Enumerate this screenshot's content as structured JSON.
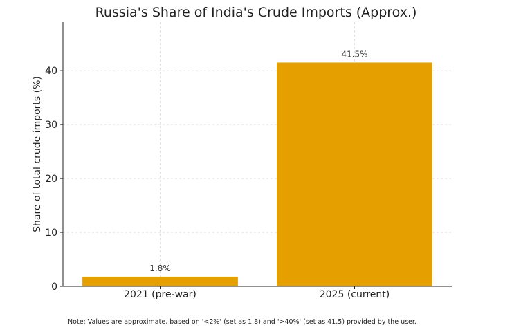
{
  "chart_data": {
    "type": "bar",
    "title": "Russia's Share of India's Crude Imports (Approx.)",
    "xlabel": "",
    "ylabel": "Share of total crude imports (%)",
    "categories": [
      "2021 (pre-war)",
      "2025 (current)"
    ],
    "values": [
      1.8,
      41.5
    ],
    "data_labels": [
      "1.8%",
      "41.5%"
    ],
    "ylim": [
      0,
      49
    ],
    "yticks": [
      0,
      10,
      20,
      30,
      40
    ],
    "ytick_labels": [
      "0",
      "10",
      "20",
      "30",
      "40"
    ],
    "grid": true,
    "bar_color": "#E5A000"
  },
  "note": "Note: Values are approximate, based on '<2%' (set as 1.8) and '>40%' (set as 41.5) provided by the user."
}
